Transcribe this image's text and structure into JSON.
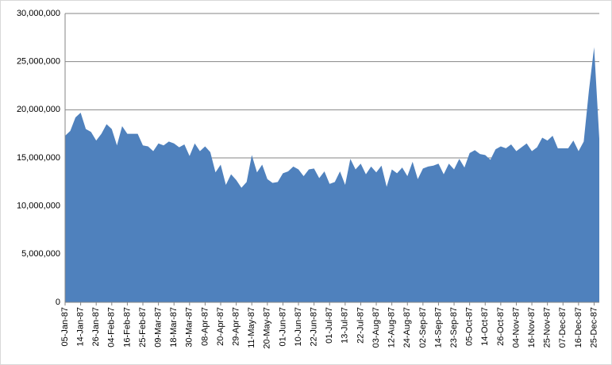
{
  "chart_data": {
    "type": "area",
    "color": "#4f81bd",
    "grid": true,
    "categories": [
      "05-Jan-87",
      null,
      null,
      "14-Jan-87",
      null,
      null,
      "26-Jan-87",
      null,
      null,
      "04-Feb-87",
      null,
      null,
      "16-Feb-87",
      null,
      null,
      "25-Feb-87",
      null,
      null,
      "09-Mar-87",
      null,
      null,
      "18-Mar-87",
      null,
      null,
      "30-Mar-87",
      null,
      null,
      "08-Apr-87",
      null,
      null,
      "20-Apr-87",
      null,
      null,
      "29-Apr-87",
      null,
      null,
      "11-May-87",
      null,
      null,
      "20-May-87",
      null,
      null,
      "01-Jun-87",
      null,
      null,
      "10-Jun-87",
      null,
      null,
      "22-Jun-87",
      null,
      null,
      "01-Jul-87",
      null,
      null,
      "13-Jul-87",
      null,
      null,
      "22-Jul-87",
      null,
      null,
      "03-Aug-87",
      null,
      null,
      "12-Aug-87",
      null,
      null,
      "24-Aug-87",
      null,
      null,
      "02-Sep-87",
      null,
      null,
      "14-Sep-87",
      null,
      null,
      "23-Sep-87",
      null,
      null,
      "05-Oct-87",
      null,
      null,
      "14-Oct-87",
      null,
      null,
      "26-Oct-87",
      null,
      null,
      "04-Nov-87",
      null,
      null,
      "16-Nov-87",
      null,
      null,
      "25-Nov-87",
      null,
      null,
      "07-Dec-87",
      null,
      null,
      "16-Dec-87",
      null,
      null,
      "25-Dec-87",
      null
    ],
    "values": [
      17300000,
      17800000,
      19200000,
      19700000,
      18000000,
      17700000,
      16800000,
      17500000,
      18500000,
      18000000,
      16300000,
      18300000,
      17500000,
      17500000,
      17500000,
      16300000,
      16200000,
      15700000,
      16500000,
      16300000,
      16700000,
      16500000,
      16100000,
      16400000,
      15200000,
      16500000,
      15700000,
      16200000,
      15600000,
      13500000,
      14300000,
      12200000,
      13300000,
      12700000,
      11900000,
      12500000,
      15300000,
      13500000,
      14300000,
      12800000,
      12400000,
      12500000,
      13400000,
      13600000,
      14100000,
      13800000,
      13100000,
      13800000,
      13900000,
      12900000,
      13600000,
      12300000,
      12500000,
      13600000,
      12200000,
      14900000,
      13800000,
      14400000,
      13300000,
      14100000,
      13500000,
      14200000,
      12000000,
      13800000,
      13400000,
      14000000,
      13100000,
      14600000,
      12800000,
      13900000,
      14100000,
      14200000,
      14400000,
      13300000,
      14400000,
      13800000,
      14900000,
      14000000,
      15500000,
      15800000,
      15400000,
      15300000,
      14800000,
      15900000,
      16200000,
      16000000,
      16400000,
      15700000,
      16100000,
      16500000,
      15700000,
      16100000,
      17100000,
      16800000,
      17300000,
      16000000,
      16000000,
      16000000,
      16800000,
      15700000,
      16700000,
      22000000,
      26500000,
      17000000
    ],
    "ylim": [
      0,
      30000000
    ],
    "yticks": [
      0,
      {
        "value": 5000000,
        "label": "5,000,000"
      },
      {
        "value": 10000000,
        "label": "10,000,000"
      },
      {
        "value": 15000000,
        "label": "15,000,000"
      },
      {
        "value": 20000000,
        "label": "20,000,000"
      },
      {
        "value": 25000000,
        "label": "25,000,000"
      },
      {
        "value": 30000000,
        "label": "30,000,000"
      }
    ]
  }
}
